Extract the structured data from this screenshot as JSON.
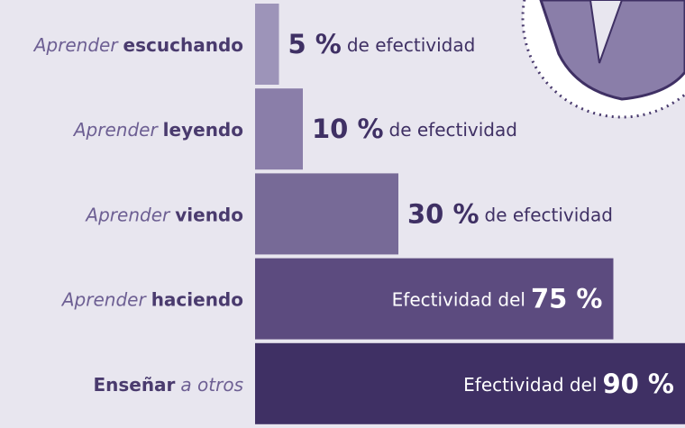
{
  "chart_data": {
    "type": "bar",
    "orientation": "horizontal",
    "categories": [
      [
        {
          "text": "Aprender",
          "style": "light"
        },
        {
          "text": "escuchando",
          "style": "bold"
        }
      ],
      [
        {
          "text": "Aprender",
          "style": "light"
        },
        {
          "text": "leyendo",
          "style": "bold"
        }
      ],
      [
        {
          "text": "Aprender",
          "style": "light"
        },
        {
          "text": "viendo",
          "style": "bold"
        }
      ],
      [
        {
          "text": "Aprender",
          "style": "light"
        },
        {
          "text": "haciendo",
          "style": "bold"
        }
      ],
      [
        {
          "text": "Enseñar",
          "style": "bold"
        },
        {
          "text": "a otros",
          "style": "light"
        }
      ]
    ],
    "values": [
      5,
      10,
      30,
      75,
      90
    ],
    "value_labels": [
      "5 %",
      "10 %",
      "30 %",
      "75 %",
      "90 %"
    ],
    "label_suffix": "de efectividad",
    "label_prefix": "Efectividad del",
    "colors": [
      "#9d94b9",
      "#8a7ea9",
      "#776a97",
      "#5c4b7f",
      "#3f3064"
    ]
  }
}
